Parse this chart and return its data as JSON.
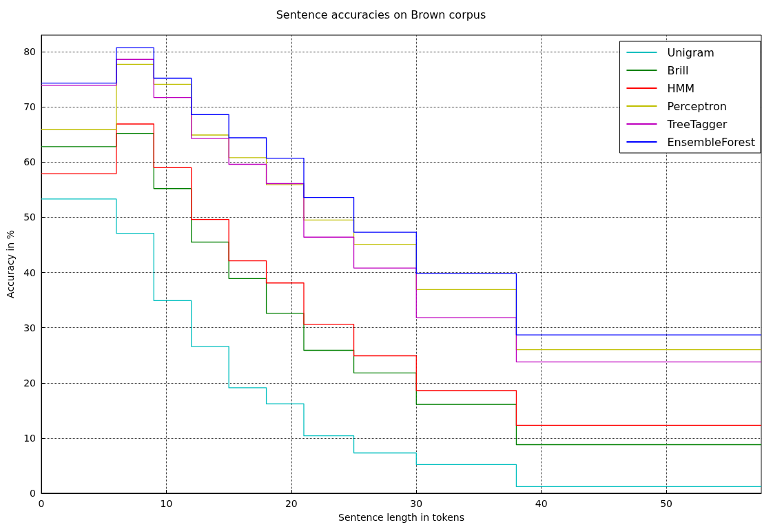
{
  "chart_data": {
    "type": "step",
    "title": "Sentence accuracies on Brown corpus",
    "xlabel": "Sentence length in tokens",
    "ylabel": "Accuracy in %",
    "x": [
      0,
      6,
      9,
      12,
      15,
      18,
      21,
      25,
      30,
      38,
      57.6
    ],
    "series": [
      {
        "name": "Unigram",
        "color": "#00bfbf",
        "values": [
          53.3,
          47.1,
          34.9,
          26.6,
          19.1,
          16.2,
          10.4,
          7.3,
          5.2,
          1.2,
          1.2
        ]
      },
      {
        "name": "Brill",
        "color": "#008000",
        "values": [
          62.8,
          65.2,
          55.2,
          45.5,
          38.9,
          32.6,
          25.9,
          21.8,
          16.1,
          8.8,
          8.8
        ]
      },
      {
        "name": "HMM",
        "color": "#ff0000",
        "values": [
          57.9,
          66.9,
          59.0,
          49.6,
          42.1,
          38.1,
          30.6,
          24.9,
          18.6,
          12.3,
          12.3
        ]
      },
      {
        "name": "Perceptron",
        "color": "#bfbf00",
        "values": [
          65.9,
          77.7,
          74.1,
          64.9,
          60.8,
          55.9,
          49.5,
          45.1,
          36.9,
          26.0,
          26.0
        ]
      },
      {
        "name": "TreeTagger",
        "color": "#bf00bf",
        "values": [
          73.9,
          78.6,
          71.7,
          64.3,
          59.6,
          56.1,
          46.4,
          40.8,
          31.8,
          23.8,
          23.8
        ]
      },
      {
        "name": "EnsembleForest",
        "color": "#0000ff",
        "values": [
          74.3,
          80.7,
          75.2,
          68.6,
          64.4,
          60.7,
          53.6,
          47.3,
          39.8,
          28.7,
          28.7
        ]
      }
    ],
    "xlim": [
      0,
      57.6
    ],
    "xticks": [
      0,
      10,
      20,
      30,
      40,
      50
    ],
    "ylim": [
      0,
      83
    ],
    "yticks": [
      0,
      10,
      20,
      30,
      40,
      50,
      60,
      70,
      80
    ],
    "grid": true,
    "legend": "top right",
    "marker": "none",
    "line_style": "solid"
  }
}
